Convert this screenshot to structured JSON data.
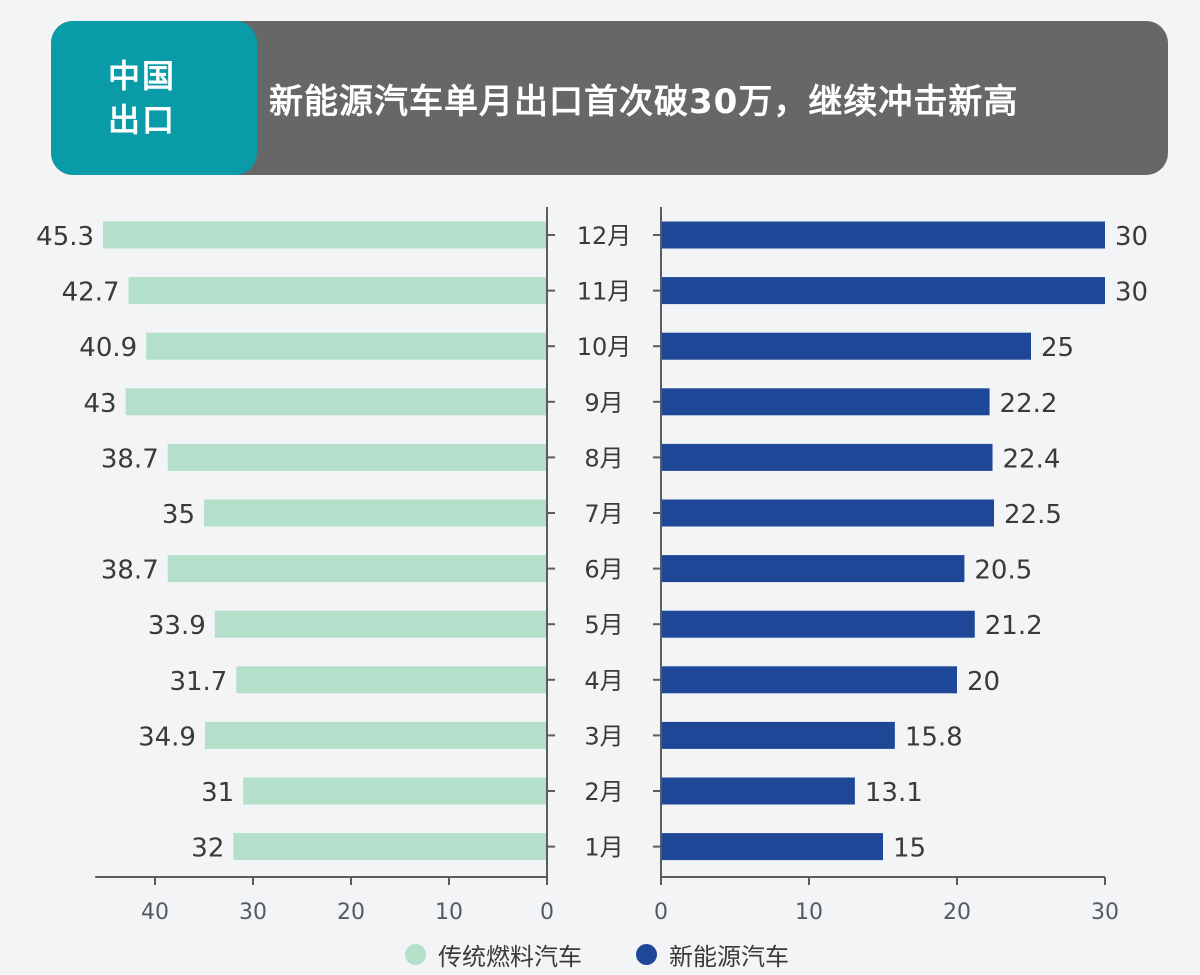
{
  "header": {
    "badge_line1": "中国",
    "badge_line2": "出口",
    "title": "新能源汽车单月出口首次破30万，继续冲击新高"
  },
  "colors": {
    "badge_bg": "#0a9ba8",
    "banner_bg": "#676767",
    "traditional": "#b4e0cb",
    "nev": "#1f4797",
    "axis": "#5c5c5c",
    "text": "#3a3a3a",
    "background": "#f3f4f6"
  },
  "legend": {
    "items": [
      {
        "label": "传统燃料汽车",
        "color": "#b4e0cb"
      },
      {
        "label": "新能源汽车",
        "color": "#1f4797"
      }
    ]
  },
  "chart_data": {
    "type": "bar",
    "orientation": "horizontal-butterfly",
    "title": "新能源汽车单月出口首次破30万，继续冲击新高",
    "categories": [
      "12月",
      "11月",
      "10月",
      "9月",
      "8月",
      "7月",
      "6月",
      "5月",
      "4月",
      "3月",
      "2月",
      "1月"
    ],
    "series": [
      {
        "name": "传统燃料汽车",
        "side": "left",
        "values": [
          45.3,
          42.7,
          40.9,
          43,
          38.7,
          35,
          38.7,
          33.9,
          31.7,
          34.9,
          31,
          32
        ],
        "labels": [
          "45.3",
          "42.7",
          "40.9",
          "43",
          "38.7",
          "35",
          "38.7",
          "33.9",
          "31.7",
          "34.9",
          "31",
          "32"
        ],
        "xlim": [
          0,
          46
        ],
        "ticks": [
          40,
          30,
          20,
          10,
          0
        ],
        "tick_labels": [
          "40",
          "30",
          "20",
          "10",
          "0"
        ]
      },
      {
        "name": "新能源汽车",
        "side": "right",
        "values": [
          30,
          30,
          25,
          22.2,
          22.4,
          22.5,
          20.5,
          21.2,
          20,
          15.8,
          13.1,
          15
        ],
        "labels": [
          "30",
          "30",
          "25",
          "22.2",
          "22.4",
          "22.5",
          "20.5",
          "21.2",
          "20",
          "15.8",
          "13.1",
          "15"
        ],
        "xlim": [
          0,
          30
        ],
        "ticks": [
          0,
          10,
          20,
          30
        ],
        "tick_labels": [
          "0",
          "10",
          "20",
          "30"
        ]
      }
    ],
    "xlabel": "",
    "ylabel": "",
    "grid": false,
    "legend_position": "bottom-center"
  }
}
